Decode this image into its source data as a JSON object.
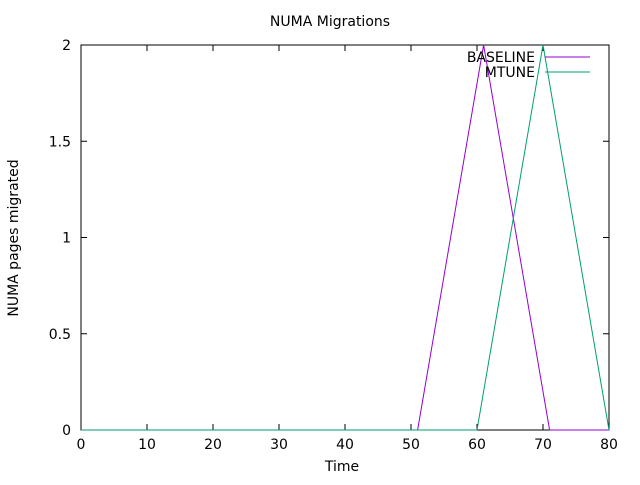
{
  "chart_data": {
    "type": "line",
    "title": "NUMA Migrations",
    "xlabel": "Time",
    "ylabel": "NUMA pages migrated",
    "xlim": [
      0,
      80
    ],
    "ylim": [
      0,
      2
    ],
    "xticks": [
      "0",
      "10",
      "20",
      "30",
      "40",
      "50",
      "60",
      "70",
      "80"
    ],
    "yticks": [
      "0",
      "0.5",
      "1",
      "1.5",
      "2"
    ],
    "grid": false,
    "legend_position": "top-right",
    "series": [
      {
        "name": "BASELINE",
        "color": "#9400d3",
        "points": [
          [
            0,
            0
          ],
          [
            51,
            0
          ],
          [
            61,
            2
          ],
          [
            71,
            0
          ],
          [
            80,
            0
          ]
        ]
      },
      {
        "name": "MTUNE",
        "color": "#009e73",
        "points": [
          [
            0,
            0
          ],
          [
            60,
            0
          ],
          [
            70,
            2
          ],
          [
            80,
            0
          ]
        ]
      }
    ]
  }
}
